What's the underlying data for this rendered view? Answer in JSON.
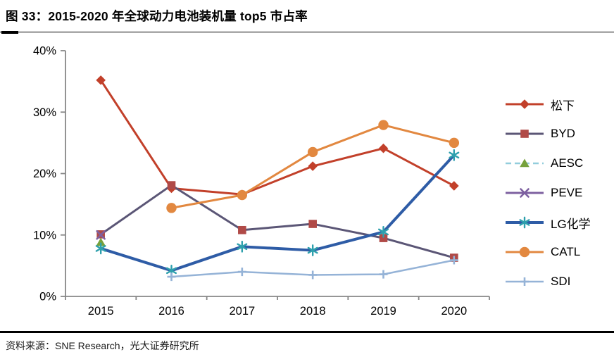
{
  "header": {
    "title": "图 33：2015-2020 年全球动力电池装机量 top5 市占率"
  },
  "footer": {
    "source": "资料来源：SNE Research，光大证券研究所"
  },
  "chart_data": {
    "type": "line",
    "title": "2015-2020 年全球动力电池装机量 top5 市占率",
    "categories": [
      "2015",
      "2016",
      "2017",
      "2018",
      "2019",
      "2020"
    ],
    "xlabel": "",
    "ylabel": "",
    "ylim": [
      0,
      40
    ],
    "y_tick_step": 10,
    "y_tick_labels": [
      "0%",
      "10%",
      "20%",
      "30%",
      "40%"
    ],
    "grid": false,
    "legend_position": "right",
    "axis_color": "#878787",
    "text_color": "#000000",
    "series": [
      {
        "name": "松下",
        "marker": "diamond",
        "line_color": "#c2402a",
        "marker_color": "#c2402a",
        "line_width": 3,
        "dash": false,
        "values": [
          35.2,
          17.6,
          16.6,
          21.2,
          24.1,
          18.0
        ]
      },
      {
        "name": "BYD",
        "marker": "square",
        "line_color": "#5b5676",
        "marker_color": "#b04a47",
        "line_width": 3,
        "dash": false,
        "values": [
          10.1,
          18.1,
          10.8,
          11.8,
          9.5,
          6.3
        ]
      },
      {
        "name": "AESC",
        "marker": "triangle",
        "line_color": "#92cddc",
        "marker_color": "#76a13c",
        "line_width": 2.5,
        "dash": true,
        "values": [
          8.8,
          null,
          null,
          null,
          null,
          null
        ]
      },
      {
        "name": "PEVE",
        "marker": "x",
        "line_color": "#7d60a0",
        "marker_color": "#7d60a0",
        "line_width": 3,
        "dash": false,
        "values": [
          10.0,
          null,
          null,
          null,
          null,
          null
        ]
      },
      {
        "name": "LG化学",
        "marker": "asterisk",
        "line_color": "#2e5ca6",
        "marker_color": "#2ea0ad",
        "line_width": 4,
        "dash": false,
        "values": [
          7.8,
          4.2,
          8.1,
          7.5,
          10.5,
          23.0
        ]
      },
      {
        "name": "CATL",
        "marker": "circle",
        "line_color": "#e28840",
        "marker_color": "#e28840",
        "line_width": 3,
        "dash": false,
        "values": [
          null,
          14.4,
          16.5,
          23.5,
          27.9,
          25.0
        ]
      },
      {
        "name": "SDI",
        "marker": "plus",
        "line_color": "#95b3d7",
        "marker_color": "#95b3d7",
        "line_width": 2.5,
        "dash": false,
        "values": [
          null,
          3.2,
          4.0,
          3.5,
          3.6,
          5.9
        ]
      }
    ]
  }
}
